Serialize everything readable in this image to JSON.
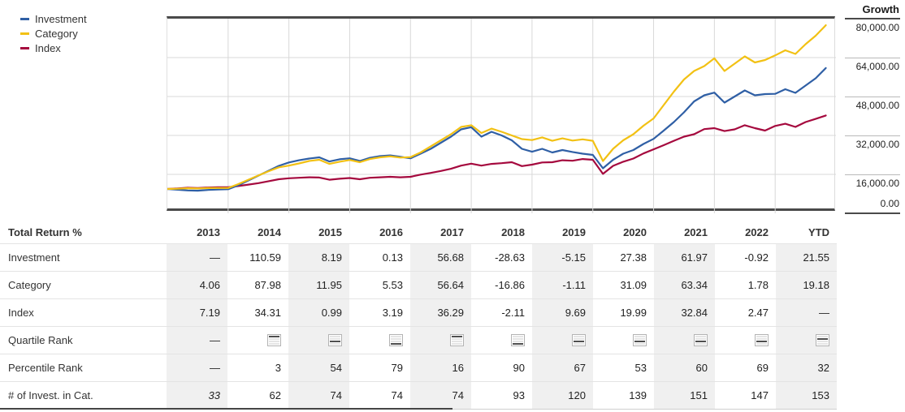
{
  "legend": {
    "items": [
      {
        "label": "Investment",
        "color": "#2f5fa5"
      },
      {
        "label": "Category",
        "color": "#f2c114"
      },
      {
        "label": "Index",
        "color": "#a5093e"
      }
    ]
  },
  "growth_axis": {
    "title": "Growth",
    "ticks": [
      {
        "label": "80,000.00",
        "value": 80000
      },
      {
        "label": "64,000.00",
        "value": 64000
      },
      {
        "label": "48,000.00",
        "value": 48000
      },
      {
        "label": "32,000.00",
        "value": 32000
      },
      {
        "label": "16,000.00",
        "value": 16000
      },
      {
        "label": "0.00",
        "value": 0
      }
    ]
  },
  "chart_data": {
    "type": "line",
    "title": "Growth",
    "xlabel": "",
    "ylabel": "Growth",
    "x_range": [
      2013,
      2024
    ],
    "y_range": [
      0,
      80000
    ],
    "x_gridline_years": [
      2014,
      2015,
      2016,
      2017,
      2018,
      2019,
      2020,
      2021,
      2022,
      2023
    ],
    "grid": true,
    "legend_position": "top-left",
    "x_start": 2013.0,
    "x_step": 0.16667,
    "series": [
      {
        "name": "Index",
        "color": "#a5093e",
        "values": [
          10000,
          10200,
          10500,
          10400,
          10600,
          10700,
          10700,
          11200,
          11800,
          12400,
          13200,
          14000,
          14400,
          14600,
          14800,
          14700,
          13800,
          14200,
          14500,
          14000,
          14600,
          14800,
          15000,
          14800,
          15000,
          15900,
          16600,
          17400,
          18300,
          19600,
          20400,
          19600,
          20300,
          20600,
          21000,
          19400,
          20000,
          20900,
          21000,
          21800,
          21600,
          22300,
          22000,
          16200,
          19500,
          21200,
          22500,
          24600,
          26300,
          28000,
          29800,
          31500,
          32500,
          34600,
          35000,
          33800,
          34500,
          36200,
          35000,
          34000,
          35900,
          36800,
          35500,
          37500,
          38800,
          40200
        ]
      },
      {
        "name": "Investment",
        "color": "#2f5fa5",
        "values": [
          10000,
          9700,
          9400,
          9300,
          9600,
          9800,
          9900,
          11500,
          13500,
          15500,
          17500,
          19500,
          20900,
          21800,
          22500,
          23000,
          21300,
          22200,
          22600,
          21500,
          22800,
          23500,
          23800,
          23200,
          22600,
          24500,
          26500,
          29000,
          31500,
          34500,
          35400,
          31500,
          33500,
          32000,
          30000,
          26500,
          25300,
          26500,
          25000,
          26000,
          25200,
          24500,
          24000,
          18500,
          22000,
          24500,
          26000,
          28500,
          30600,
          34000,
          37500,
          41500,
          46000,
          48500,
          49600,
          45500,
          48000,
          50500,
          48500,
          49000,
          49100,
          51000,
          49500,
          52500,
          55500,
          59700
        ]
      },
      {
        "name": "Category",
        "color": "#f2c114",
        "values": [
          10000,
          10100,
          10300,
          10200,
          10350,
          10400,
          10400,
          12000,
          13800,
          15600,
          17300,
          18900,
          19600,
          20500,
          21500,
          22000,
          20300,
          21200,
          21900,
          21000,
          22300,
          23000,
          23400,
          22900,
          23100,
          25000,
          27500,
          30000,
          32500,
          35500,
          36200,
          33000,
          34800,
          33500,
          32000,
          30500,
          30100,
          31200,
          29800,
          30800,
          29900,
          30400,
          29800,
          21500,
          26500,
          30000,
          32500,
          36000,
          39000,
          44500,
          50000,
          55000,
          58500,
          60500,
          63700,
          58500,
          61500,
          64500,
          62000,
          63000,
          64900,
          67000,
          65500,
          69500,
          73000,
          77300
        ]
      }
    ]
  },
  "table": {
    "header_label": "Total Return %",
    "columns": [
      "2013",
      "2014",
      "2015",
      "2016",
      "2017",
      "2018",
      "2019",
      "2020",
      "2021",
      "2022",
      "YTD"
    ],
    "shaded_columns": [
      0,
      2,
      4,
      6,
      8,
      10
    ],
    "rows": [
      {
        "label": "Investment",
        "type": "number",
        "values": [
          "—",
          "110.59",
          "8.19",
          "0.13",
          "56.68",
          "-28.63",
          "-5.15",
          "27.38",
          "61.97",
          "-0.92",
          "21.55"
        ]
      },
      {
        "label": "Category",
        "type": "number",
        "values": [
          "4.06",
          "87.98",
          "11.95",
          "5.53",
          "56.64",
          "-16.86",
          "-1.11",
          "31.09",
          "63.34",
          "1.78",
          "19.18"
        ]
      },
      {
        "label": "Index",
        "type": "number",
        "values": [
          "7.19",
          "34.31",
          "0.99",
          "3.19",
          "36.29",
          "-2.11",
          "9.69",
          "19.99",
          "32.84",
          "2.47",
          "—"
        ]
      },
      {
        "label": "Quartile Rank",
        "type": "quartile",
        "values": [
          "—",
          1,
          3,
          4,
          1,
          4,
          3,
          3,
          3,
          3,
          2
        ]
      },
      {
        "label": "Percentile Rank",
        "type": "number",
        "values": [
          "—",
          "3",
          "54",
          "79",
          "16",
          "90",
          "67",
          "53",
          "60",
          "69",
          "32"
        ]
      },
      {
        "label": "# of Invest. in Cat.",
        "type": "number",
        "italic_cells": [
          0
        ],
        "values": [
          "33",
          "62",
          "74",
          "74",
          "74",
          "93",
          "120",
          "139",
          "151",
          "147",
          "153"
        ]
      }
    ]
  },
  "colors": {
    "grid": "#d8d8d8",
    "axis_dark": "#4a4a4a",
    "column_shade": "#f0f0f0",
    "row_border": "#e4e4e4",
    "text": "#222222"
  }
}
